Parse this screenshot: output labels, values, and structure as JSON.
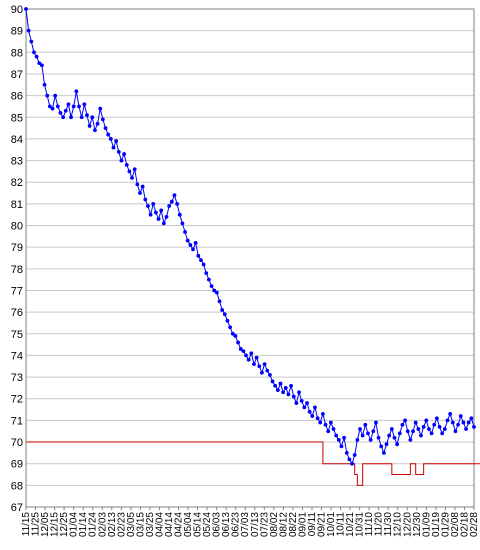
{
  "chart_data": {
    "type": "line",
    "title": "",
    "xlabel": "",
    "ylabel": "",
    "ylim": [
      67,
      90
    ],
    "y_ticks": [
      67,
      68,
      69,
      70,
      71,
      72,
      73,
      74,
      75,
      76,
      77,
      78,
      79,
      80,
      81,
      82,
      83,
      84,
      85,
      86,
      87,
      88,
      89,
      90
    ],
    "x_tick_labels": [
      "11/15",
      "11/25",
      "12/05",
      "12/15",
      "12/25",
      "01/04",
      "01/14",
      "01/24",
      "02/03",
      "02/13",
      "02/23",
      "03/05",
      "03/15",
      "03/25",
      "04/04",
      "04/14",
      "04/24",
      "05/04",
      "05/14",
      "05/24",
      "06/03",
      "06/13",
      "06/23",
      "07/03",
      "07/13",
      "07/23",
      "08/02",
      "08/12",
      "08/22",
      "09/01",
      "09/11",
      "09/21",
      "10/01",
      "10/11",
      "10/21",
      "10/31",
      "11/10",
      "11/20",
      "11/30",
      "12/10",
      "12/20",
      "12/30",
      "01/09",
      "01/19",
      "01/29",
      "02/08",
      "02/18",
      "02/28"
    ],
    "grid": "horizontal",
    "colors": {
      "series": "#0000ff",
      "target": "#cc0000",
      "grid": "#c8c8c8"
    },
    "series": [
      {
        "values": [
          90,
          89,
          88.5,
          88,
          87.8,
          87.5,
          87.4,
          86.5,
          86,
          85.5,
          85.4,
          86,
          85.5,
          85.2,
          85,
          85.3,
          85.6,
          85,
          85.5,
          86.2,
          85.5,
          85,
          85.6,
          85.1,
          84.6,
          85,
          84.4,
          84.7,
          85.4,
          84.9,
          84.5,
          84.2,
          84,
          83.6,
          83.9,
          83.4,
          83,
          83.3,
          82.8,
          82.5,
          82.2,
          82.6,
          81.9,
          81.5,
          81.8,
          81.2,
          80.9,
          80.5,
          81,
          80.6,
          80.3,
          80.7,
          80.1,
          80.4,
          80.9,
          81.1,
          81.4,
          81,
          80.5,
          80.1,
          79.7,
          79.3,
          79.1,
          78.9,
          79.2,
          78.6,
          78.4,
          78.2,
          77.8,
          77.5,
          77.2,
          77,
          76.9,
          76.5,
          76.1,
          75.9,
          75.6,
          75.3,
          75,
          74.9,
          74.6,
          74.3,
          74.2,
          74,
          73.8,
          74.1,
          73.6,
          73.9,
          73.5,
          73.2,
          73.6,
          73.3,
          73.1,
          72.8,
          72.6,
          72.4,
          72.7,
          72.3,
          72.5,
          72.2,
          72.6,
          72.1,
          71.8,
          72.3,
          71.9,
          71.6,
          71.8,
          71.4,
          71.2,
          71.6,
          71.1,
          70.9,
          71.3,
          70.8,
          70.5,
          70.9,
          70.6,
          70.3,
          70.1,
          69.8,
          70.2,
          69.5,
          69.2,
          69,
          69.4,
          70.1,
          70.6,
          70.3,
          70.8,
          70.4,
          70.1,
          70.5,
          70.9,
          70.2,
          69.8,
          69.5,
          69.9,
          70.3,
          70.6,
          70.2,
          69.9,
          70.4,
          70.8,
          71,
          70.5,
          70.1,
          70.5,
          70.9,
          70.6,
          70.3,
          70.7,
          71,
          70.6,
          70.4,
          70.8,
          71.1,
          70.7,
          70.4,
          70.6,
          71,
          71.3,
          70.9,
          70.5,
          70.8,
          71.2,
          70.9,
          70.6,
          70.9,
          71.1,
          70.7
        ]
      },
      {
        "values": [
          70,
          70,
          70,
          70,
          70,
          70,
          70,
          70,
          70,
          70,
          70,
          70,
          70,
          70,
          70,
          70,
          70,
          70,
          70,
          70,
          70,
          70,
          70,
          70,
          70,
          70,
          70,
          70,
          70,
          70,
          70,
          70,
          70,
          70,
          70,
          70,
          70,
          70,
          70,
          70,
          70,
          70,
          70,
          70,
          70,
          70,
          70,
          70,
          70,
          70,
          70,
          70,
          70,
          70,
          70,
          70,
          70,
          70,
          70,
          70,
          70,
          70,
          70,
          70,
          70,
          70,
          70,
          70,
          70,
          70,
          70,
          70,
          70,
          70,
          70,
          70,
          70,
          70,
          70,
          70,
          70,
          70,
          70,
          70,
          70,
          70,
          70,
          70,
          70,
          70,
          70,
          70,
          70,
          70,
          70,
          70,
          70,
          70,
          70,
          70,
          70,
          70,
          70,
          70,
          70,
          70,
          70,
          70,
          70,
          70,
          70,
          70,
          69,
          69,
          69,
          69,
          69,
          69,
          69,
          69,
          69,
          69,
          69,
          69,
          68.5,
          68,
          68,
          69,
          69,
          69,
          69,
          69,
          69,
          69,
          69,
          69,
          69,
          69,
          68.5,
          68.5,
          68.5,
          68.5,
          68.5,
          68.5,
          68.5,
          69,
          69,
          68.5,
          68.5,
          68.5,
          69,
          69,
          69,
          69,
          69,
          69,
          69,
          69,
          69,
          69,
          69,
          69,
          69,
          69,
          69,
          69,
          69,
          69,
          69,
          69,
          69,
          69,
          69,
          69,
          69,
          69
        ]
      }
    ]
  }
}
